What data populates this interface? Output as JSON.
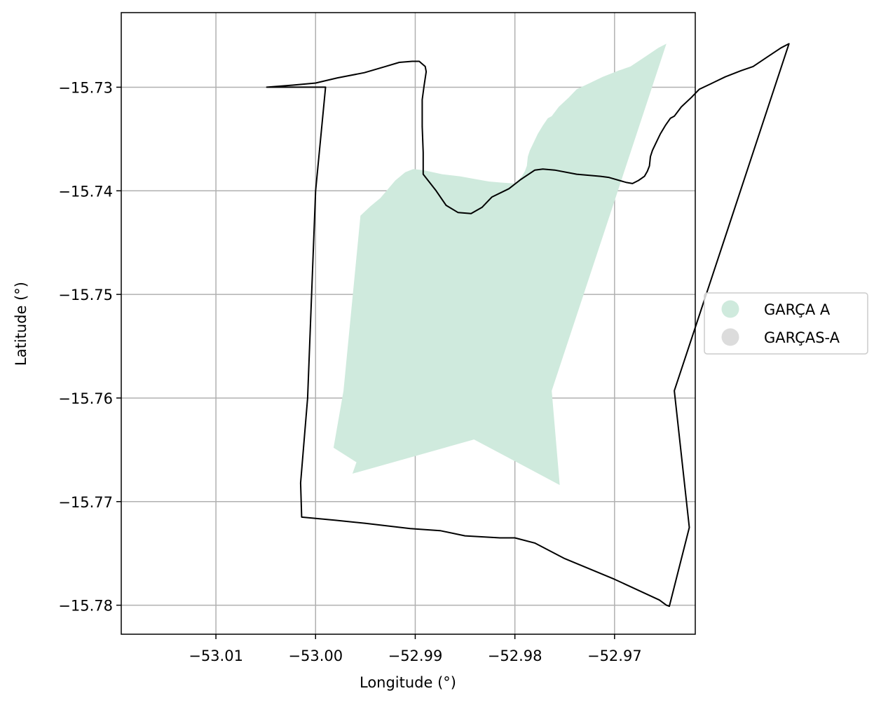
{
  "map": {
    "xlabel": "Longitude (°)",
    "ylabel": "Latitude (°)",
    "xlim": [
      -53.0195,
      -52.9619
    ],
    "ylim": [
      -15.7828,
      -15.7228
    ],
    "grid": true,
    "x_ticks": [
      {
        "value": -53.01,
        "label": "−53.01"
      },
      {
        "value": -53.0,
        "label": "−53.00"
      },
      {
        "value": -52.99,
        "label": "−52.99"
      },
      {
        "value": -52.98,
        "label": "−52.98"
      },
      {
        "value": -52.97,
        "label": "−52.97"
      }
    ],
    "y_ticks": [
      {
        "value": -15.73,
        "label": "−15.73"
      },
      {
        "value": -15.74,
        "label": "−15.74"
      },
      {
        "value": -15.75,
        "label": "−15.75"
      },
      {
        "value": -15.76,
        "label": "−15.76"
      },
      {
        "value": -15.77,
        "label": "−15.77"
      },
      {
        "value": -15.78,
        "label": "−15.78"
      }
    ],
    "legend": {
      "placement": "center-right",
      "items": [
        {
          "label": "GARÇA A",
          "color": "#cfeadd"
        },
        {
          "label": "GARÇAS-A",
          "color": "#dcdcdc"
        }
      ]
    },
    "layers": {
      "area": {
        "name": "GARÇA A",
        "fill": "#cfeadd",
        "polygon": [
          [
            -52.9955,
            -15.7424
          ],
          [
            -52.9945,
            -15.7415
          ],
          [
            -52.9935,
            -15.7407
          ],
          [
            -52.992,
            -15.739
          ],
          [
            -52.991,
            -15.7382
          ],
          [
            -52.9902,
            -15.7379
          ],
          [
            -52.9892,
            -15.738
          ],
          [
            -52.9873,
            -15.7384
          ],
          [
            -52.9855,
            -15.7386
          ],
          [
            -52.9838,
            -15.7389
          ],
          [
            -52.9826,
            -15.7391
          ],
          [
            -52.9815,
            -15.7392
          ],
          [
            -52.98,
            -15.7393
          ],
          [
            -52.9796,
            -15.7389
          ],
          [
            -52.9793,
            -15.7386
          ],
          [
            -52.979,
            -15.7381
          ],
          [
            -52.9788,
            -15.7376
          ],
          [
            -52.9787,
            -15.7367
          ],
          [
            -52.9785,
            -15.7361
          ],
          [
            -52.9781,
            -15.7353
          ],
          [
            -52.9777,
            -15.7345
          ],
          [
            -52.9772,
            -15.7337
          ],
          [
            -52.9767,
            -15.733
          ],
          [
            -52.9763,
            -15.7328
          ],
          [
            -52.9756,
            -15.7319
          ],
          [
            -52.9746,
            -15.731
          ],
          [
            -52.9738,
            -15.7302
          ],
          [
            -52.9727,
            -15.7297
          ],
          [
            -52.9712,
            -15.729
          ],
          [
            -52.9696,
            -15.7284
          ],
          [
            -52.9684,
            -15.728
          ],
          [
            -52.967,
            -15.7271
          ],
          [
            -52.9656,
            -15.7262
          ],
          [
            -52.9648,
            -15.7258
          ],
          [
            -52.9709,
            -15.7436
          ],
          [
            -52.9763,
            -15.7593
          ],
          [
            -52.9755,
            -15.7684
          ],
          [
            -52.9841,
            -15.764
          ],
          [
            -52.9963,
            -15.7673
          ],
          [
            -52.9959,
            -15.7662
          ],
          [
            -52.9982,
            -15.7648
          ],
          [
            -52.9972,
            -15.7593
          ],
          [
            -52.9955,
            -15.7424
          ]
        ]
      },
      "boundary": {
        "stroke": "#000000",
        "polygon": [
          [
            -53.0049,
            -15.73
          ],
          [
            -53.0023,
            -15.7298
          ],
          [
            -53.0,
            -15.7296
          ],
          [
            -52.9978,
            -15.7291
          ],
          [
            -52.9951,
            -15.7286
          ],
          [
            -52.993,
            -15.728
          ],
          [
            -52.9916,
            -15.7276
          ],
          [
            -52.9903,
            -15.7275
          ],
          [
            -52.9896,
            -15.7275
          ],
          [
            -52.989,
            -15.728
          ],
          [
            -52.9889,
            -15.7285
          ],
          [
            -52.9891,
            -15.7298
          ],
          [
            -52.9893,
            -15.7312
          ],
          [
            -52.9893,
            -15.7338
          ],
          [
            -52.9892,
            -15.7363
          ],
          [
            -52.9892,
            -15.7384
          ],
          [
            -52.9879,
            -15.74
          ],
          [
            -52.9869,
            -15.7414
          ],
          [
            -52.9857,
            -15.7421
          ],
          [
            -52.9844,
            -15.7422
          ],
          [
            -52.9833,
            -15.7416
          ],
          [
            -52.9823,
            -15.7406
          ],
          [
            -52.9806,
            -15.7398
          ],
          [
            -52.9794,
            -15.7389
          ],
          [
            -52.978,
            -15.738
          ],
          [
            -52.9772,
            -15.7379
          ],
          [
            -52.976,
            -15.738
          ],
          [
            -52.9738,
            -15.7384
          ],
          [
            -52.9714,
            -15.7386
          ],
          [
            -52.9706,
            -15.7387
          ],
          [
            -52.9688,
            -15.7392
          ],
          [
            -52.9682,
            -15.7393
          ],
          [
            -52.9676,
            -15.739
          ],
          [
            -52.967,
            -15.7386
          ],
          [
            -52.9667,
            -15.7381
          ],
          [
            -52.9665,
            -15.7376
          ],
          [
            -52.9664,
            -15.7367
          ],
          [
            -52.9662,
            -15.7361
          ],
          [
            -52.9658,
            -15.7353
          ],
          [
            -52.9654,
            -15.7345
          ],
          [
            -52.9649,
            -15.7337
          ],
          [
            -52.9644,
            -15.733
          ],
          [
            -52.964,
            -15.7328
          ],
          [
            -52.9633,
            -15.7319
          ],
          [
            -52.9623,
            -15.731
          ],
          [
            -52.9615,
            -15.7302
          ],
          [
            -52.9604,
            -15.7297
          ],
          [
            -52.9589,
            -15.729
          ],
          [
            -52.9573,
            -15.7284
          ],
          [
            -52.9561,
            -15.728
          ],
          [
            -52.9547,
            -15.7271
          ],
          [
            -52.9533,
            -15.7262
          ],
          [
            -52.9525,
            -15.7258
          ],
          [
            -52.9586,
            -15.7436
          ],
          [
            -52.964,
            -15.7593
          ],
          [
            -52.9625,
            -15.7725
          ],
          [
            -52.9645,
            -15.7801
          ],
          [
            -52.9648,
            -15.78
          ],
          [
            -52.9655,
            -15.7795
          ],
          [
            -52.97,
            -15.7775
          ],
          [
            -52.975,
            -15.7755
          ],
          [
            -52.978,
            -15.774
          ],
          [
            -52.98,
            -15.7735
          ],
          [
            -52.9815,
            -15.7735
          ],
          [
            -52.985,
            -15.7733
          ],
          [
            -52.9875,
            -15.7728
          ],
          [
            -52.9905,
            -15.7726
          ],
          [
            -52.995,
            -15.7721
          ],
          [
            -52.998,
            -15.7718
          ],
          [
            -53.0014,
            -15.7715
          ],
          [
            -53.0015,
            -15.7682
          ],
          [
            -53.0008,
            -15.76
          ],
          [
            -53.0,
            -15.74
          ],
          [
            -52.999,
            -15.73
          ],
          [
            -53.0049,
            -15.73
          ]
        ]
      }
    }
  }
}
